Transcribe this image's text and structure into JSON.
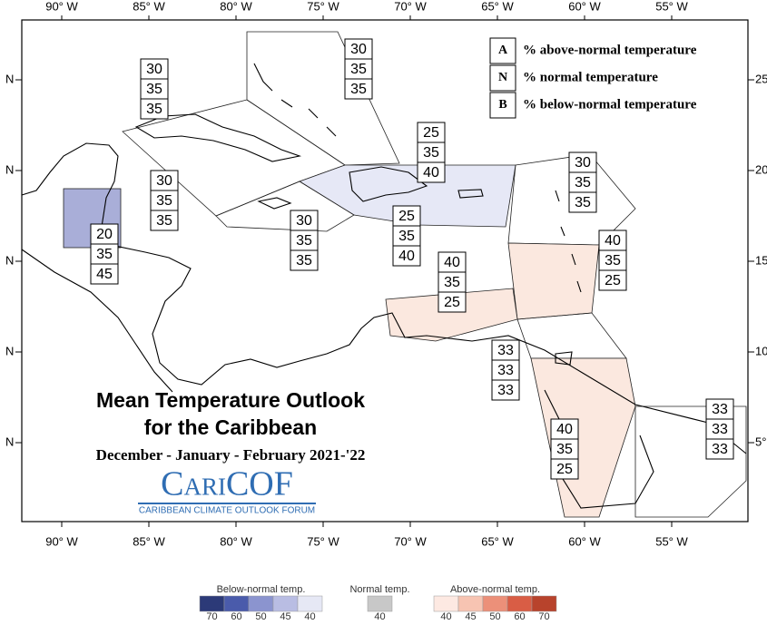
{
  "map": {
    "longitude_labels": [
      "90° W",
      "85° W",
      "80° W",
      "75° W",
      "70° W",
      "65° W",
      "60° W",
      "55° W"
    ],
    "latitude_labels_left": [
      "N",
      "N",
      "N",
      "N",
      "N"
    ],
    "latitude_labels_right": [
      "25",
      "20",
      "15",
      "10",
      "5°"
    ],
    "key": [
      {
        "letter": "A",
        "text": "% above-normal temperature"
      },
      {
        "letter": "N",
        "text": "% normal temperature"
      },
      {
        "letter": "B",
        "text": "% below-normal temperature"
      }
    ],
    "regions": [
      {
        "values": [
          30,
          35,
          35
        ]
      },
      {
        "values": [
          30,
          35,
          35
        ]
      },
      {
        "values": [
          25,
          35,
          40
        ]
      },
      {
        "values": [
          30,
          35,
          35
        ]
      },
      {
        "values": [
          30,
          35,
          35
        ]
      },
      {
        "values": [
          30,
          35,
          35
        ]
      },
      {
        "values": [
          25,
          35,
          40
        ]
      },
      {
        "values": [
          20,
          35,
          45
        ]
      },
      {
        "values": [
          40,
          35,
          25
        ]
      },
      {
        "values": [
          40,
          35,
          25
        ]
      },
      {
        "values": [
          33,
          33,
          33
        ]
      },
      {
        "values": [
          40,
          35,
          25
        ]
      },
      {
        "values": [
          33,
          33,
          33
        ]
      }
    ],
    "title": [
      "Mean Temperature Outlook",
      "for the Caribbean"
    ],
    "subtitle": "December - January - February 2021-'22",
    "logo": {
      "name": "CariCOF",
      "tagline": "CARIBBEAN CLIMATE OUTLOOK FORUM"
    }
  },
  "legend": {
    "below": {
      "label": "Below-normal temp.",
      "ticks": [
        70,
        60,
        50,
        45,
        40
      ]
    },
    "normal": {
      "label": "Normal temp.",
      "ticks": [
        40
      ]
    },
    "above": {
      "label": "Above-normal temp.",
      "ticks": [
        40,
        45,
        50,
        60,
        70
      ]
    }
  }
}
